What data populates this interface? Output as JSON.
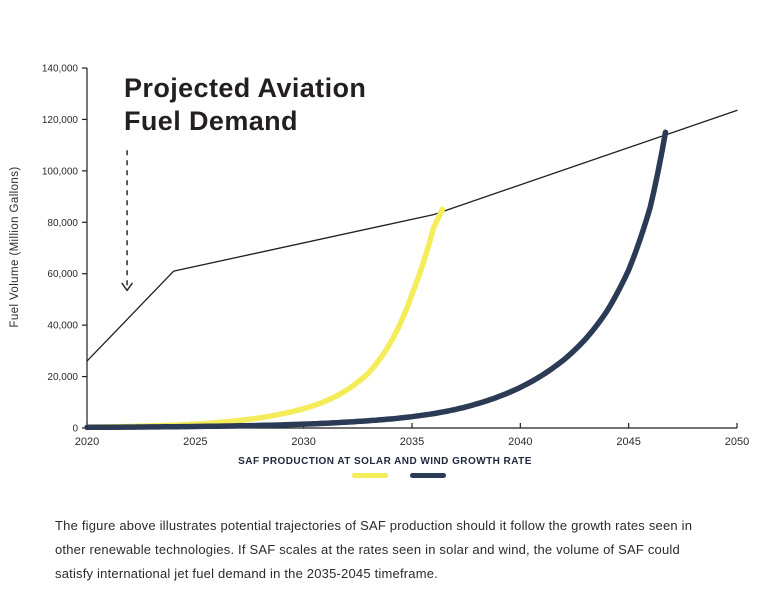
{
  "header": {
    "title_line1": "Projected Aviation",
    "title_line2": "Fuel Demand"
  },
  "legend": {
    "label": "SAF PRODUCTION AT SOLAR AND WIND GROWTH RATE"
  },
  "caption": {
    "text": "The figure above illustrates potential trajectories of SAF production should it follow the growth rates seen in other renewable technologies. If SAF scales at the rates seen in solar and wind, the volume of SAF could satisfy international jet fuel demand in the 2035-2045 timeframe."
  },
  "colors": {
    "solar": "#F5EC5A",
    "wind": "#2B3A55",
    "demand_line": "#1F1F1F",
    "axis": "#1F1F1F",
    "text": "#2B2B2B",
    "title": "#231F20"
  },
  "chart_data": {
    "type": "line",
    "title": "Projected Aviation Fuel Demand",
    "xlabel": "",
    "ylabel": "Fuel Volume (Million Gallons)",
    "xlim": [
      2020,
      2050
    ],
    "ylim": [
      0,
      140000
    ],
    "x_ticks": [
      2020,
      2025,
      2030,
      2035,
      2040,
      2045,
      2050
    ],
    "y_ticks": [
      0,
      20000,
      40000,
      60000,
      80000,
      100000,
      120000,
      140000
    ],
    "grid": false,
    "legend_position": "bottom",
    "series": [
      {
        "name": "Projected aviation fuel demand",
        "color": "#1F1F1F",
        "stroke_width": 1.3,
        "smooth": false,
        "points": [
          [
            2020,
            26000
          ],
          [
            2024,
            61000
          ],
          [
            2036,
            83000
          ],
          [
            2050,
            123500
          ]
        ]
      },
      {
        "name": "SAF production at solar growth rate",
        "color": "#F5EC5A",
        "stroke_width": 5.5,
        "smooth": true,
        "points": [
          [
            2020,
            300
          ],
          [
            2022,
            600
          ],
          [
            2024,
            1100
          ],
          [
            2025,
            1500
          ],
          [
            2026,
            2100
          ],
          [
            2027,
            2900
          ],
          [
            2028,
            4000
          ],
          [
            2029,
            5500
          ],
          [
            2030,
            7500
          ],
          [
            2031,
            10400
          ],
          [
            2032,
            14800
          ],
          [
            2033,
            21500
          ],
          [
            2034,
            33000
          ],
          [
            2035,
            52000
          ],
          [
            2036,
            78000
          ],
          [
            2036.4,
            85000
          ]
        ]
      },
      {
        "name": "SAF production at wind growth rate",
        "color": "#2B3A55",
        "stroke_width": 5.5,
        "smooth": true,
        "points": [
          [
            2020,
            250
          ],
          [
            2024,
            500
          ],
          [
            2028,
            1000
          ],
          [
            2030,
            1500
          ],
          [
            2032,
            2300
          ],
          [
            2034,
            3500
          ],
          [
            2035,
            4400
          ],
          [
            2036,
            5600
          ],
          [
            2037,
            7200
          ],
          [
            2038,
            9400
          ],
          [
            2039,
            12200
          ],
          [
            2040,
            15800
          ],
          [
            2041,
            20500
          ],
          [
            2042,
            26500
          ],
          [
            2043,
            34500
          ],
          [
            2044,
            45500
          ],
          [
            2045,
            61500
          ],
          [
            2046,
            86000
          ],
          [
            2046.7,
            115000
          ]
        ]
      }
    ],
    "annotation": {
      "type": "dashed-down-arrow",
      "x": 2021.85,
      "y_top": 108000,
      "y_bottom": 53500
    }
  }
}
